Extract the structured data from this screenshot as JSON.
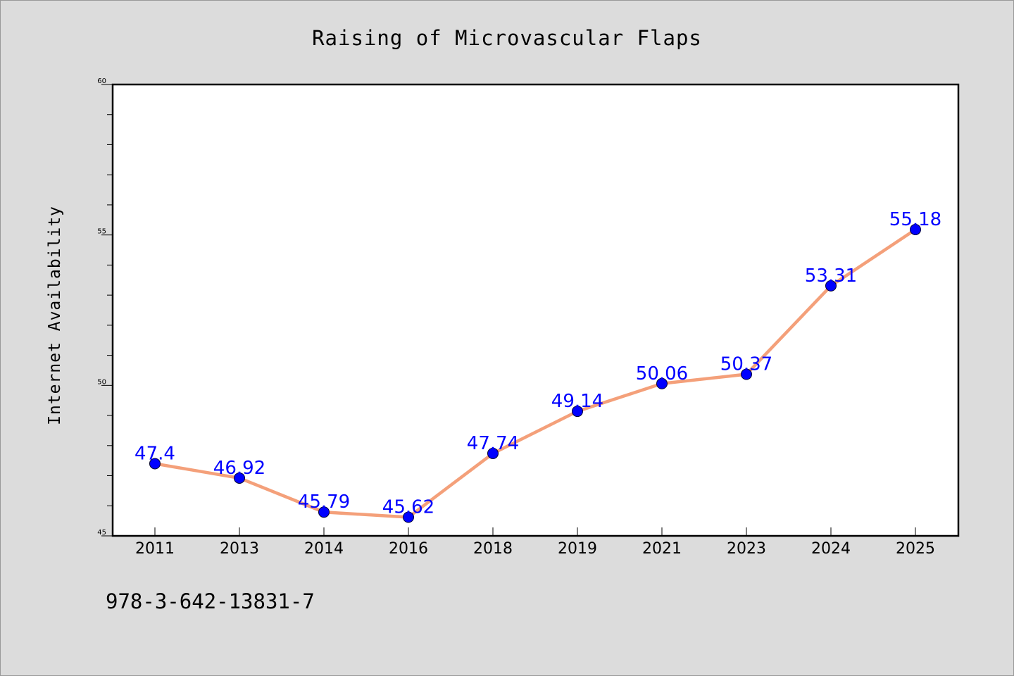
{
  "chart_data": {
    "type": "line",
    "title": "Raising of Microvascular Flaps",
    "xlabel": "",
    "ylabel": "Internet Availability",
    "categories": [
      "2011",
      "2013",
      "2014",
      "2016",
      "2018",
      "2019",
      "2021",
      "2023",
      "2024",
      "2025"
    ],
    "series": [
      {
        "values": [
          47.4,
          46.92,
          45.79,
          45.62,
          47.74,
          49.14,
          50.06,
          50.37,
          53.31,
          55.18
        ],
        "data_labels": [
          "47.4",
          "46.92",
          "45.79",
          "45.62",
          "47.74",
          "49.14",
          "50.06",
          "50.37",
          "53.31",
          "55.18"
        ]
      }
    ],
    "ylim": [
      45,
      60
    ],
    "yticks": [
      "45",
      "50",
      "55",
      "60"
    ],
    "grid": false,
    "line_color": "#f4a07a",
    "marker_color": "#0000ff",
    "label_color": "#0000ff",
    "plot_background": "#ffffff",
    "page_background": "#dcdcdc"
  },
  "footnote": "978-3-642-13831-7"
}
